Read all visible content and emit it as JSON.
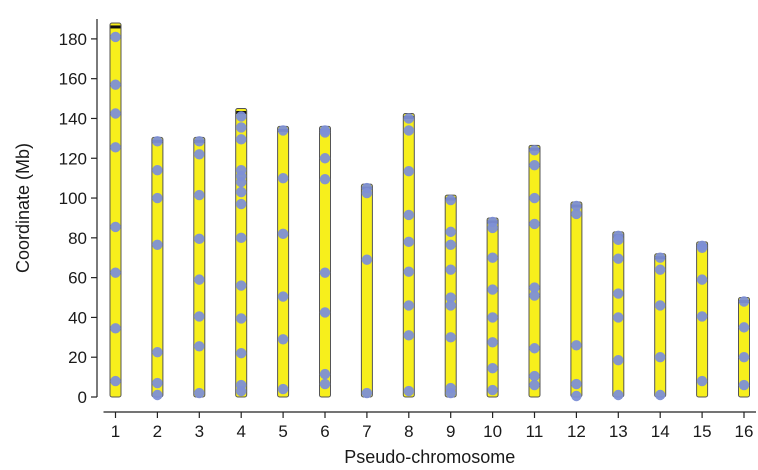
{
  "chart_data": {
    "type": "scatter",
    "xlabel": "Pseudo-chromosome",
    "ylabel": "Coordinate (Mb)",
    "ylim": [
      0,
      190
    ],
    "yticks": [
      0,
      20,
      40,
      60,
      80,
      100,
      120,
      140,
      160,
      180
    ],
    "grid": false,
    "colors": {
      "chromosome_fill": "#f7ef1c",
      "chromosome_edge": "#555555",
      "marker": "#7d8fd6",
      "end_mark": "#111111",
      "axis": "#222222"
    },
    "chromosomes": [
      {
        "label": "1",
        "length": 188,
        "markers": [
          181,
          157,
          142.5,
          125.5,
          85.5,
          62.5,
          34.5,
          8
        ]
      },
      {
        "label": "2",
        "length": 130.5,
        "markers": [
          128.5,
          114,
          100,
          76.5,
          22.5,
          7,
          1
        ]
      },
      {
        "label": "3",
        "length": 130.5,
        "markers": [
          128.5,
          122,
          101.5,
          79.5,
          59,
          40.5,
          25.5,
          2
        ]
      },
      {
        "label": "4",
        "length": 145,
        "markers": [
          141,
          135.5,
          129.5,
          114,
          111,
          108,
          103,
          97,
          80,
          56,
          39.5,
          22,
          6,
          3
        ]
      },
      {
        "label": "5",
        "length": 136,
        "markers": [
          134,
          110,
          82,
          50.5,
          29,
          4
        ]
      },
      {
        "label": "6",
        "length": 136,
        "markers": [
          134,
          133,
          120,
          109.5,
          62.5,
          42.5,
          11.5,
          6.5
        ]
      },
      {
        "label": "7",
        "length": 107,
        "markers": [
          105,
          102.5,
          69,
          2
        ]
      },
      {
        "label": "8",
        "length": 142.5,
        "markers": [
          140,
          134,
          113.5,
          91.5,
          78,
          63,
          46,
          31,
          3
        ]
      },
      {
        "label": "9",
        "length": 101.5,
        "markers": [
          99,
          83,
          76.5,
          64,
          50,
          46,
          30,
          4.5,
          2
        ]
      },
      {
        "label": "10",
        "length": 90,
        "markers": [
          88,
          85,
          70,
          54,
          40,
          27.5,
          14.5,
          3.5
        ]
      },
      {
        "label": "11",
        "length": 126.5,
        "markers": [
          124,
          116.5,
          100,
          87,
          55,
          51,
          24.5,
          10.5,
          6
        ]
      },
      {
        "label": "12",
        "length": 98,
        "markers": [
          96,
          92,
          26,
          6.5,
          0.5
        ]
      },
      {
        "label": "13",
        "length": 83,
        "markers": [
          81,
          79,
          69.5,
          52,
          40,
          18.5,
          1
        ]
      },
      {
        "label": "14",
        "length": 72,
        "markers": [
          70,
          64,
          46,
          20,
          1
        ]
      },
      {
        "label": "15",
        "length": 78,
        "markers": [
          76,
          75,
          59,
          40.5,
          8
        ]
      },
      {
        "label": "16",
        "length": 50,
        "markers": [
          48,
          35,
          20,
          6
        ]
      }
    ]
  }
}
